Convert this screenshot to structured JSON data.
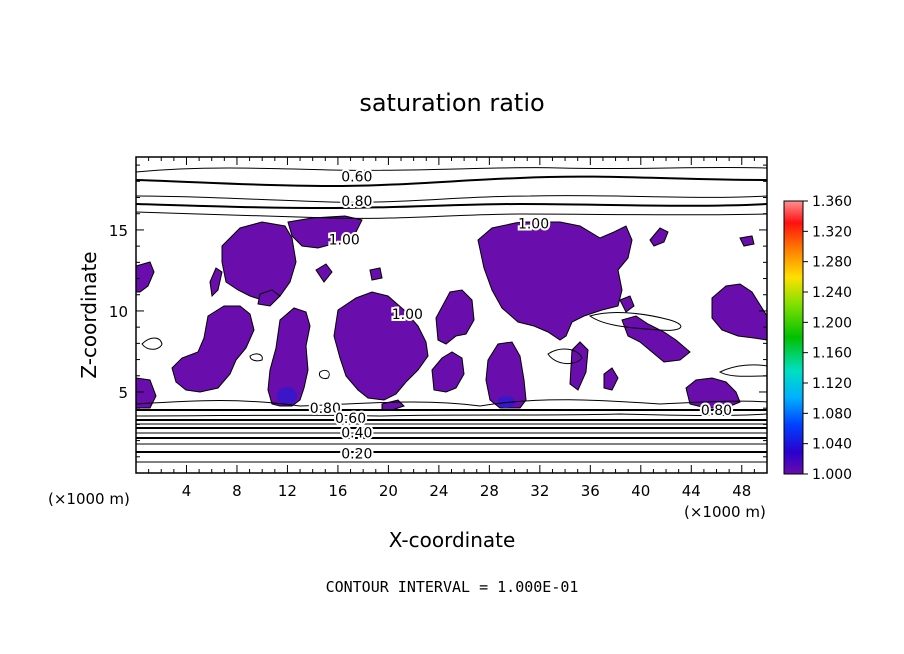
{
  "chart_data": {
    "type": "heatmap",
    "title": "saturation ratio",
    "xlabel": "X-coordinate",
    "ylabel": "Z-coordinate",
    "x_unit": "(×1000 m)",
    "x_unit_right": "(×1000 m)",
    "xlim": [
      0,
      50
    ],
    "ylim": [
      0,
      19.5
    ],
    "x_ticks": [
      4,
      8,
      12,
      16,
      20,
      24,
      28,
      32,
      36,
      40,
      44,
      48
    ],
    "y_ticks": [
      5,
      10,
      15
    ],
    "colorbar": {
      "range": [
        1.0,
        1.36
      ],
      "labels": [
        "1.360",
        "1.320",
        "1.280",
        "1.240",
        "1.200",
        "1.160",
        "1.120",
        "1.080",
        "1.040",
        "1.000"
      ],
      "colors": [
        "#6a0dad",
        "#2a00cc",
        "#0040ff",
        "#00b0ff",
        "#00e0c0",
        "#00c000",
        "#80e000",
        "#ffe000",
        "#ff8000",
        "#ff1010",
        "#ff9090"
      ]
    },
    "contour_labels": [
      {
        "text": "0.60",
        "x": 17.5,
        "z": 18.3
      },
      {
        "text": "0.80",
        "x": 17.5,
        "z": 16.8
      },
      {
        "text": "1.00",
        "x": 31.5,
        "z": 15.4
      },
      {
        "text": "1.00",
        "x": 16.5,
        "z": 14.4
      },
      {
        "text": "1.00",
        "x": 21.5,
        "z": 9.8
      },
      {
        "text": "0.80",
        "x": 15.0,
        "z": 4.0
      },
      {
        "text": "0.60",
        "x": 17.0,
        "z": 3.4
      },
      {
        "text": "0.40",
        "x": 17.5,
        "z": 2.5
      },
      {
        "text": "0.20",
        "x": 17.5,
        "z": 1.2
      },
      {
        "text": "0.80",
        "x": 46.0,
        "z": 3.9
      }
    ],
    "contour_interval_note": "CONTOUR INTERVAL = 1.000E-01",
    "supersaturated_fill": "#6a0dad",
    "grid": false
  }
}
